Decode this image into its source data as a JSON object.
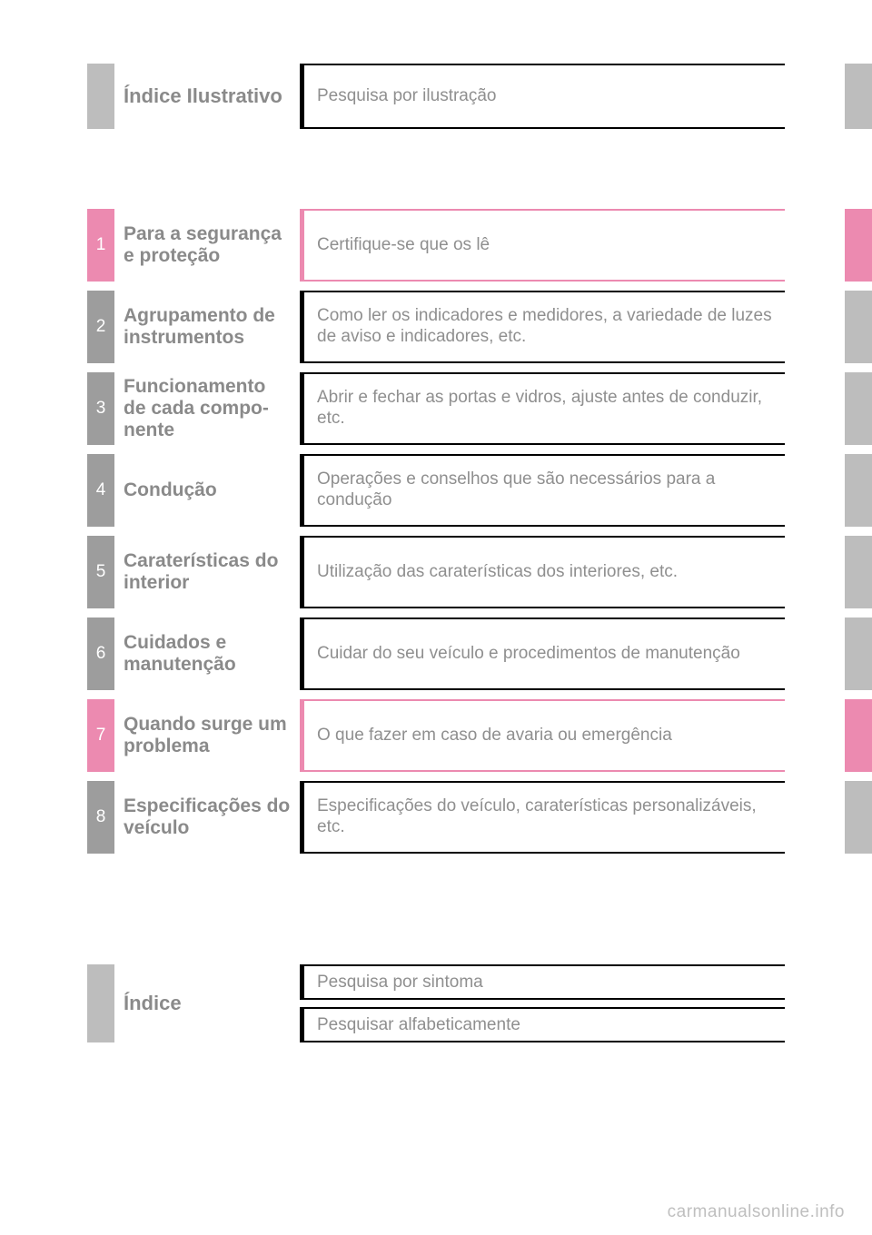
{
  "colors": {
    "gray_tab": "#bdbdbd",
    "gray_num": "#9d9d9d",
    "pink": "#ec8ab0",
    "text_muted": "#8a8a8a",
    "desc_text": "#8f8f8f",
    "border_black": "#000000",
    "footer": "#bfbfbf",
    "page_bg": "#ffffff"
  },
  "top": {
    "title": "Índice Ilustrativo",
    "desc": "Pesquisa por ilustração"
  },
  "chapters": [
    {
      "num": "1",
      "title": "Para a segurança e proteção",
      "desc": "Certifique-se que os lê",
      "highlight": true
    },
    {
      "num": "2",
      "title": "Agrupamento de instrumentos",
      "desc": "Como ler os indicadores e medidores, a variedade de luzes de aviso e indicadores, etc.",
      "highlight": false
    },
    {
      "num": "3",
      "title": "Funcionamento de cada compo­nente",
      "desc": "Abrir e fechar as portas e vidros, ajuste antes de conduzir, etc.",
      "highlight": false
    },
    {
      "num": "4",
      "title": "Condução",
      "desc": "Operações e conselhos que são necessários para a condução",
      "highlight": false
    },
    {
      "num": "5",
      "title": "Caraterísticas do interior",
      "desc": "Utilização das caraterísticas dos interiores, etc.",
      "highlight": false
    },
    {
      "num": "6",
      "title": "Cuidados e manutenção",
      "desc": "Cuidar do seu veículo e procedimentos de manutenção",
      "highlight": false
    },
    {
      "num": "7",
      "title": "Quando surge um problema",
      "desc": "O que fazer em caso de avaria ou emergência",
      "highlight": true
    },
    {
      "num": "8",
      "title": "Especificações do veículo",
      "desc": "Especificações do veículo, caraterísticas personalizáveis, etc.",
      "highlight": false
    }
  ],
  "bottom": {
    "title": "Índice",
    "items": [
      "Pesquisa por sintoma",
      "Pesquisar alfabeticamente"
    ]
  },
  "footer": "carmanualsonline.info"
}
